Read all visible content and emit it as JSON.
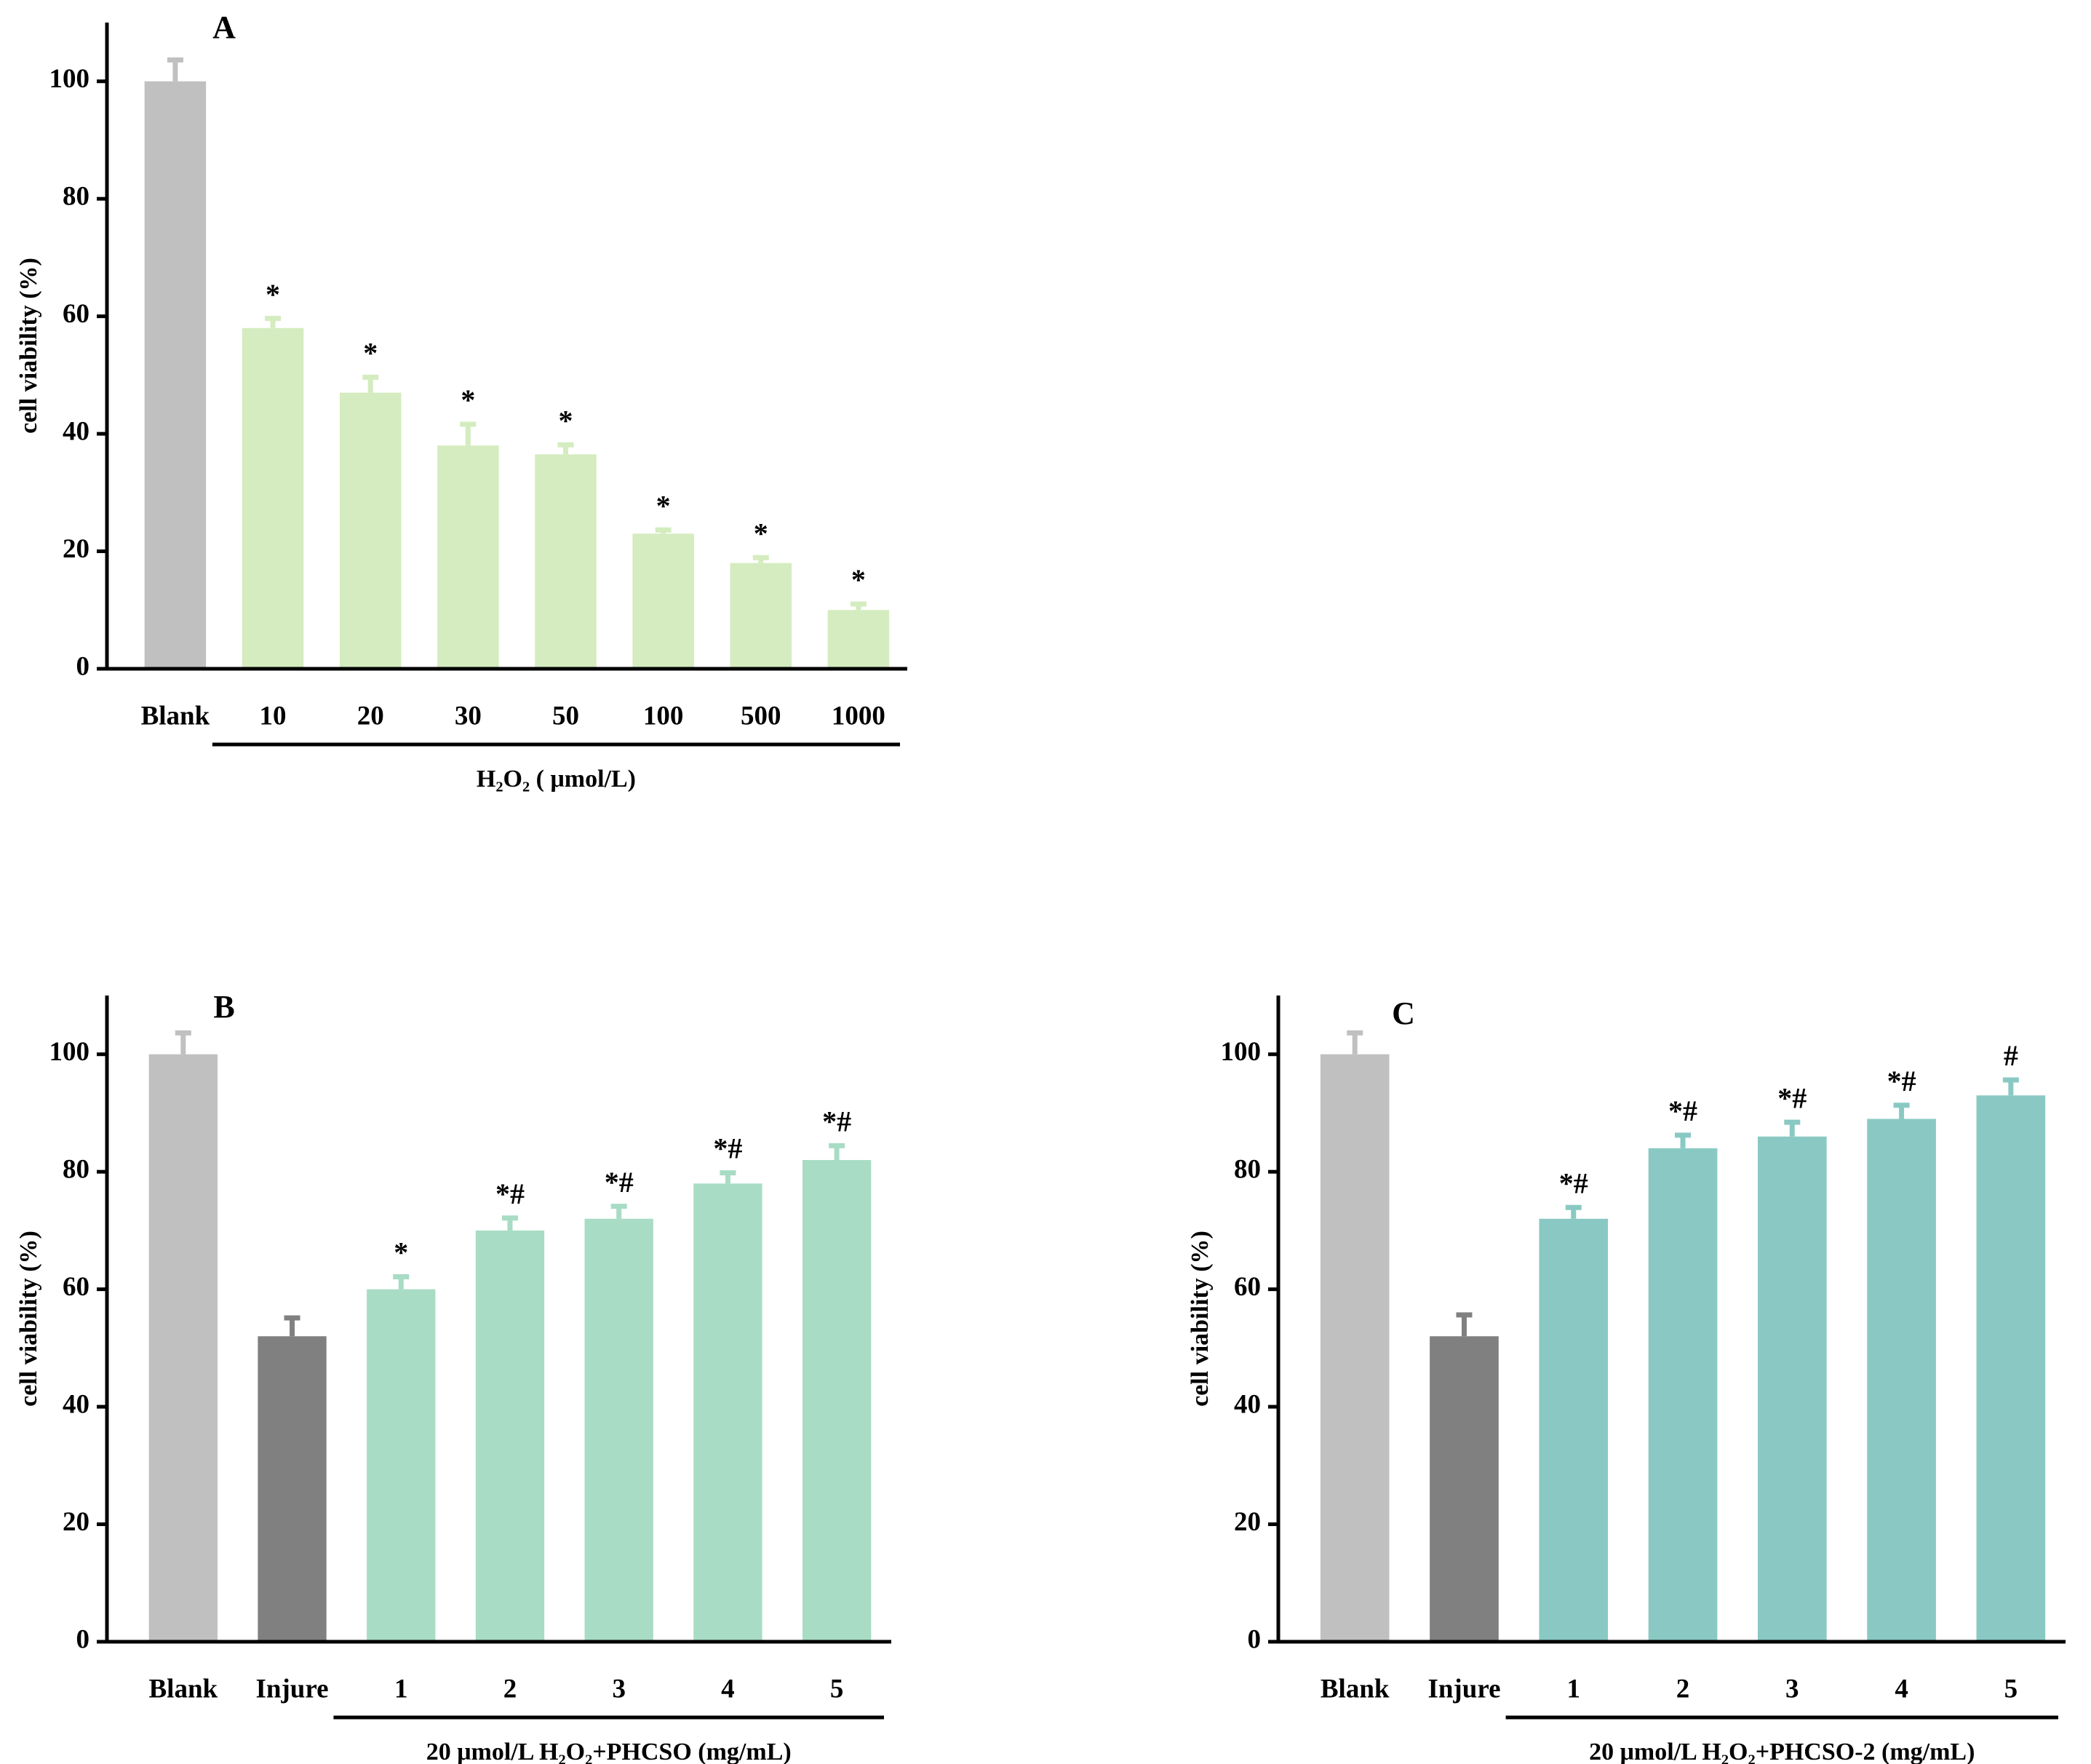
{
  "chart_data": [
    {
      "type": "bar",
      "panel_label": "A",
      "y_label": "cell viability (%)",
      "categories": [
        "Blank",
        "10",
        "20",
        "30",
        "50",
        "100",
        "500",
        "1000"
      ],
      "values": [
        100,
        58,
        47,
        38,
        36.5,
        23,
        18,
        10
      ],
      "errors": [
        4,
        2,
        3,
        4,
        2,
        1,
        1.3,
        1.4
      ],
      "annotations": [
        null,
        "*",
        "*",
        "*",
        "*",
        "*",
        "*",
        "*"
      ],
      "bar_colors": [
        "#c0c0c0",
        "#d4ecbf",
        "#d4ecbf",
        "#d4ecbf",
        "#d4ecbf",
        "#d4ecbf",
        "#d4ecbf",
        "#d4ecbf"
      ],
      "group_label": "H₂O₂ ( μmol/L)",
      "ylim": [
        0,
        110
      ],
      "yticks": [
        0,
        20,
        40,
        60,
        80,
        100
      ]
    },
    {
      "type": "bar",
      "panel_label": "B",
      "y_label": "cell viability (%)",
      "categories": [
        "Blank",
        "Injure",
        "1",
        "2",
        "3",
        "4",
        "5"
      ],
      "values": [
        100,
        52,
        60,
        70,
        72,
        78,
        82
      ],
      "errors": [
        4,
        3.5,
        2.5,
        2.5,
        2.5,
        2.2,
        2.8
      ],
      "annotations": [
        null,
        null,
        "*",
        "*#",
        "*#",
        "*#",
        "*#"
      ],
      "bar_colors": [
        "#c0c0c0",
        "#808080",
        "#a8dcc4",
        "#a8dcc4",
        "#a8dcc4",
        "#a8dcc4",
        "#a8dcc4"
      ],
      "group_label": "20 μmol/L H₂O₂+PHCSO (mg/mL)",
      "ylim": [
        0,
        110
      ],
      "yticks": [
        0,
        20,
        40,
        60,
        80,
        100
      ]
    },
    {
      "type": "bar",
      "panel_label": "C",
      "y_label": "cell viability (%)",
      "categories": [
        "Blank",
        "Injure",
        "1",
        "2",
        "3",
        "4",
        "5"
      ],
      "values": [
        100,
        52,
        72,
        84,
        86,
        89,
        93
      ],
      "errors": [
        4,
        4,
        2.3,
        2.6,
        2.8,
        2.7,
        3
      ],
      "annotations": [
        null,
        null,
        "*#",
        "*#",
        "*#",
        "*#",
        "#"
      ],
      "bar_colors": [
        "#c0c0c0",
        "#808080",
        "#8ac9c3",
        "#8ac9c3",
        "#8ac9c3",
        "#8ac9c3",
        "#8ac9c3"
      ],
      "group_label": "20 μmol/L H₂O₂+PHCSO-2 (mg/mL)",
      "ylim": [
        0,
        110
      ],
      "yticks": [
        0,
        20,
        40,
        60,
        80,
        100
      ]
    }
  ]
}
